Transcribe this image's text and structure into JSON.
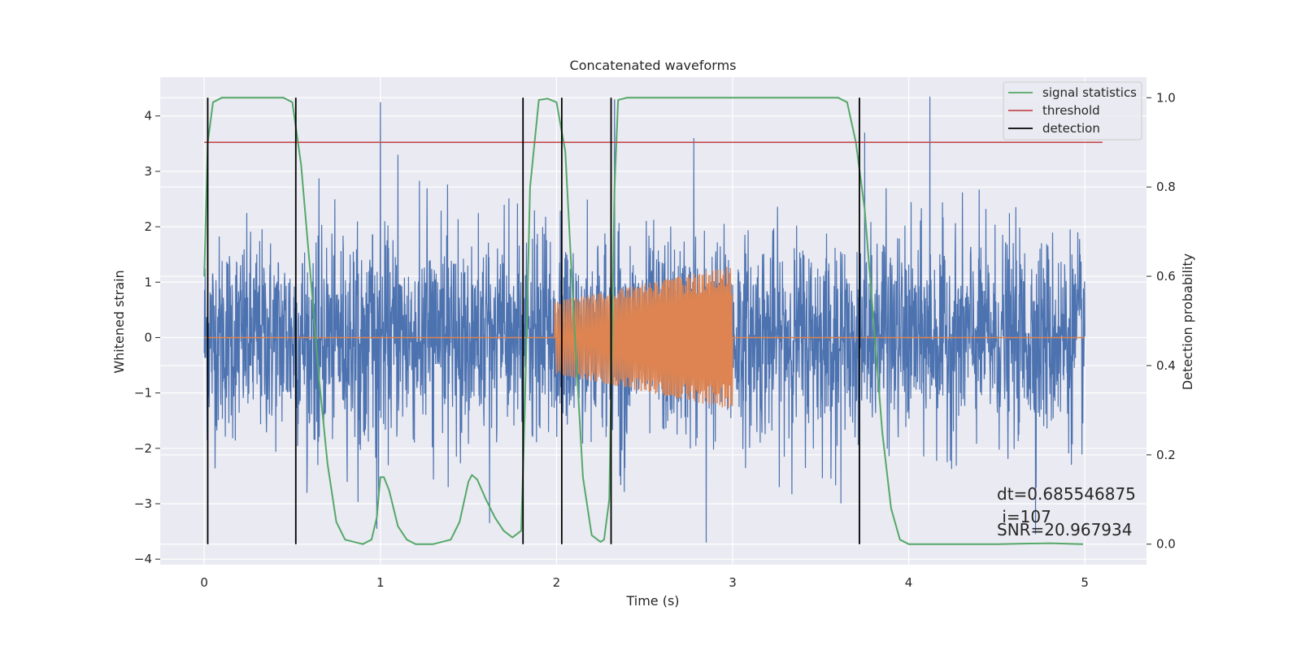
{
  "chart_data": {
    "type": "line",
    "title": "Concatenated waveforms",
    "xlabel": "Time (s)",
    "ylabel": "Whitened strain",
    "y2label": "Detection probability",
    "xlim": [
      -0.25,
      5.35
    ],
    "ylim": [
      -4.1,
      4.7
    ],
    "y2lim": [
      -0.046,
      1.046
    ],
    "xticks": [
      0,
      1,
      2,
      3,
      4,
      5
    ],
    "yticks": [
      -4,
      -3,
      -2,
      -1,
      0,
      1,
      2,
      3,
      4
    ],
    "y2ticks": [
      0.0,
      0.2,
      0.4,
      0.6,
      0.8,
      1.0
    ],
    "xtick_labels": [
      "0",
      "1",
      "2",
      "3",
      "4",
      "5"
    ],
    "ytick_labels": [
      "−4",
      "−3",
      "−2",
      "−1",
      "0",
      "1",
      "2",
      "3",
      "4"
    ],
    "y2tick_labels": [
      "0.0",
      "0.2",
      "0.4",
      "0.6",
      "0.8",
      "1.0"
    ],
    "grid": true,
    "legend_position": "top-right",
    "legend": [
      {
        "label": "signal statistics",
        "color": "#55a868"
      },
      {
        "label": "threshold",
        "color": "#c44e52"
      },
      {
        "label": "detection",
        "color": "#000000"
      }
    ],
    "annotation": [
      "dt=0.685546875",
      " i=107",
      "SNR=20.967934"
    ],
    "colors": {
      "background": "#eaeaf2",
      "grid": "#ffffff",
      "noise": "#4c72b0",
      "injected": "#dd8452",
      "statistic": "#55a868",
      "threshold": "#c44e52",
      "detection": "#000000"
    },
    "series": [
      {
        "name": "noise",
        "axis": "left",
        "description_kind": "random",
        "x_range": [
          0,
          5
        ],
        "std": 0.9,
        "spikes": [
          [
            1.0,
            4.25
          ],
          [
            1.1,
            3.3
          ],
          [
            2.33,
            4.3
          ],
          [
            4.12,
            4.35
          ],
          [
            2.78,
            3.6
          ],
          [
            3.75,
            3.7
          ],
          [
            2.85,
            -3.7
          ],
          [
            1.62,
            -3.35
          ],
          [
            0.98,
            -3.45
          ],
          [
            4.72,
            -3.55
          ]
        ]
      },
      {
        "name": "injected signal",
        "axis": "left",
        "x_range": [
          0,
          5
        ],
        "chirp_start": 1.99,
        "chirp_end": 3.0,
        "amp_start": 0.65,
        "amp_end": 1.3
      },
      {
        "name": "signal statistics",
        "axis": "right",
        "x": [
          0.0,
          0.02,
          0.05,
          0.1,
          0.45,
          0.5,
          0.55,
          0.6,
          0.65,
          0.7,
          0.75,
          0.8,
          0.9,
          0.95,
          0.98,
          1.0,
          1.02,
          1.05,
          1.1,
          1.15,
          1.2,
          1.3,
          1.4,
          1.45,
          1.5,
          1.52,
          1.55,
          1.6,
          1.65,
          1.7,
          1.75,
          1.8,
          1.82,
          1.85,
          1.9,
          1.95,
          2.0,
          2.05,
          2.1,
          2.15,
          2.2,
          2.25,
          2.27,
          2.3,
          2.33,
          2.35,
          2.4,
          3.5,
          3.6,
          3.65,
          3.7,
          3.75,
          3.8,
          3.85,
          3.9,
          3.95,
          4.0,
          4.5,
          4.8,
          4.99
        ],
        "y": [
          0.6,
          0.9,
          0.99,
          1.0,
          1.0,
          0.99,
          0.85,
          0.62,
          0.38,
          0.18,
          0.05,
          0.01,
          0.0,
          0.01,
          0.06,
          0.15,
          0.15,
          0.12,
          0.04,
          0.01,
          0.0,
          0.0,
          0.01,
          0.05,
          0.14,
          0.155,
          0.145,
          0.1,
          0.06,
          0.03,
          0.015,
          0.03,
          0.3,
          0.8,
          0.995,
          0.998,
          0.99,
          0.88,
          0.5,
          0.15,
          0.02,
          0.005,
          0.01,
          0.1,
          0.8,
          0.995,
          1.0,
          1.0,
          1.0,
          0.99,
          0.9,
          0.75,
          0.5,
          0.25,
          0.08,
          0.01,
          0.0,
          0.0,
          0.002,
          0.0
        ]
      },
      {
        "name": "threshold",
        "axis": "right",
        "x": [
          0.0,
          5.1
        ],
        "y": [
          0.9,
          0.9
        ]
      },
      {
        "name": "detection",
        "axis": "right",
        "x": [
          0.02,
          0.52,
          1.81,
          2.03,
          2.31,
          3.72
        ],
        "y_range": [
          0.0,
          1.0
        ]
      }
    ]
  }
}
